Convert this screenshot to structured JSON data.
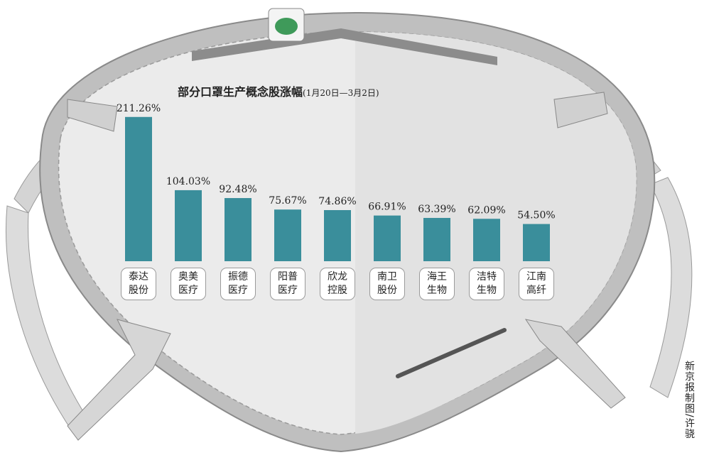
{
  "chart_data": {
    "type": "bar",
    "title": "部分口罩生产概念股涨幅",
    "subtitle": "(1月20日—3月2日)",
    "categories": [
      "泰达股份",
      "奥美医疗",
      "振德医疗",
      "阳普医疗",
      "欣龙控股",
      "南卫股份",
      "海王生物",
      "洁特生物",
      "江南高纤"
    ],
    "values": [
      211.26,
      104.03,
      92.48,
      75.67,
      74.86,
      66.91,
      63.39,
      62.09,
      54.5
    ],
    "value_labels": [
      "211.26%",
      "104.03%",
      "92.48%",
      "75.67%",
      "74.86%",
      "66.91%",
      "63.39%",
      "62.09%",
      "54.50%"
    ],
    "color": "#3a8e9b"
  },
  "credit": "新京报制图/许骁"
}
